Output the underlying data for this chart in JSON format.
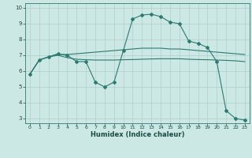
{
  "xlabel": "Humidex (Indice chaleur)",
  "background_color": "#cce8e4",
  "grid_color": "#b0ceca",
  "line_color": "#2d7a72",
  "xlim": [
    -0.5,
    23.5
  ],
  "ylim": [
    2.7,
    10.3
  ],
  "yticks": [
    3,
    4,
    5,
    6,
    7,
    8,
    9,
    10
  ],
  "xticks": [
    0,
    1,
    2,
    3,
    4,
    5,
    6,
    7,
    8,
    9,
    10,
    11,
    12,
    13,
    14,
    15,
    16,
    17,
    18,
    19,
    20,
    21,
    22,
    23
  ],
  "series": [
    {
      "x": [
        0,
        1,
        2,
        3,
        4,
        5,
        6,
        7,
        8,
        9,
        10,
        11,
        12,
        13,
        14,
        15,
        16,
        17,
        18,
        19,
        20,
        21,
        22,
        23
      ],
      "y": [
        5.8,
        6.7,
        6.9,
        7.1,
        7.0,
        6.6,
        6.6,
        5.3,
        5.0,
        5.3,
        7.3,
        9.3,
        9.55,
        9.6,
        9.45,
        9.1,
        9.0,
        7.9,
        7.75,
        7.5,
        6.6,
        3.5,
        3.0,
        2.9
      ],
      "has_markers": true
    },
    {
      "x": [
        0,
        1,
        2,
        3,
        4,
        5,
        6,
        7,
        8,
        9,
        10,
        11,
        12,
        13,
        14,
        15,
        16,
        17,
        18,
        19,
        20,
        21,
        22,
        23
      ],
      "y": [
        5.8,
        6.7,
        6.9,
        7.05,
        7.05,
        7.1,
        7.15,
        7.2,
        7.25,
        7.3,
        7.35,
        7.4,
        7.45,
        7.45,
        7.45,
        7.4,
        7.4,
        7.35,
        7.3,
        7.25,
        7.2,
        7.15,
        7.1,
        7.05
      ],
      "has_markers": false
    },
    {
      "x": [
        0,
        1,
        2,
        3,
        4,
        5,
        6,
        7,
        8,
        9,
        10,
        11,
        12,
        13,
        14,
        15,
        16,
        17,
        18,
        19,
        20,
        21,
        22,
        23
      ],
      "y": [
        5.8,
        6.7,
        6.9,
        7.0,
        6.85,
        6.75,
        6.72,
        6.7,
        6.7,
        6.7,
        6.72,
        6.73,
        6.75,
        6.77,
        6.78,
        6.78,
        6.78,
        6.75,
        6.73,
        6.72,
        6.7,
        6.68,
        6.65,
        6.6
      ],
      "has_markers": false
    }
  ]
}
